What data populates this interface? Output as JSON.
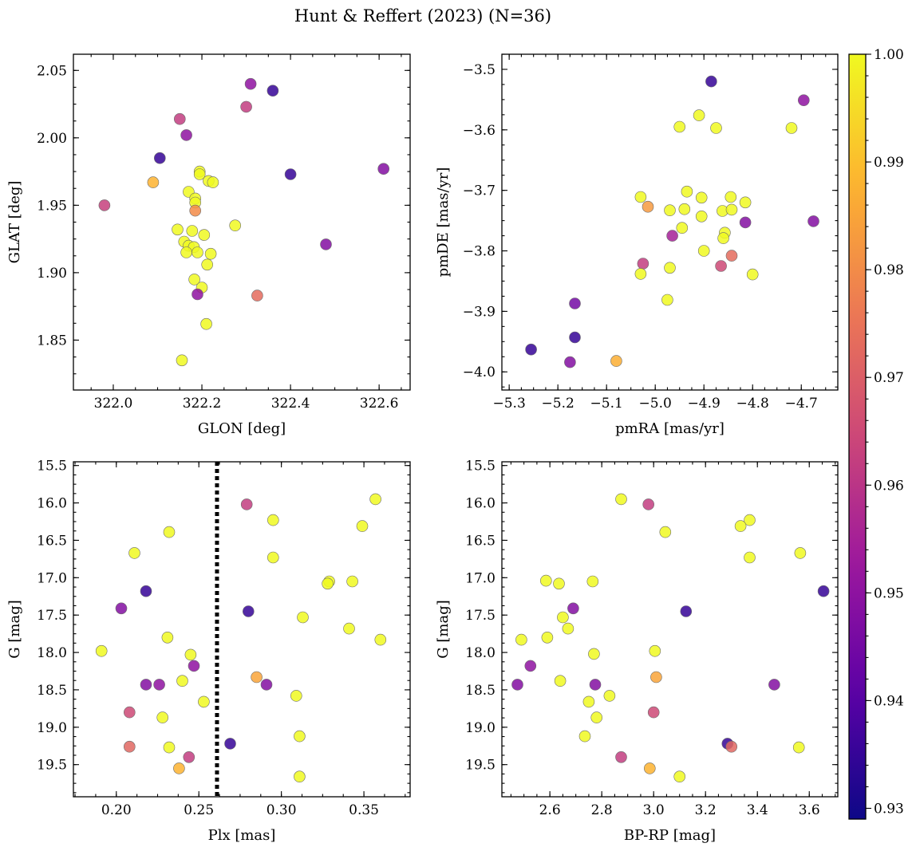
{
  "chart_data": {
    "type": "scatter",
    "title": "Hunt & Reffert (2023) (N=36)",
    "colorbar": {
      "min": 0.929,
      "max": 1.0,
      "ticks": [
        0.93,
        0.94,
        0.95,
        0.96,
        0.97,
        0.98,
        0.99,
        1.0
      ],
      "tick_labels": [
        "0.93",
        "0.94",
        "0.95",
        "0.96",
        "0.97",
        "0.98",
        "0.99",
        "1.00"
      ],
      "colormap": [
        "#0d0887",
        "#5c01a6",
        "#9c179e",
        "#cc4778",
        "#ed7953",
        "#fdb42f",
        "#f0f921"
      ]
    },
    "panels": [
      {
        "id": "glon-glat",
        "xlabel": "GLON [deg]",
        "ylabel": "GLAT [deg]",
        "xlim": [
          321.91,
          322.67
        ],
        "ylim": [
          1.813,
          2.062
        ],
        "yinvert": false,
        "xticks": [
          322.0,
          322.2,
          322.4,
          322.6
        ],
        "xtick_labels": [
          "322.0",
          "322.2",
          "322.4",
          "322.6"
        ],
        "yticks": [
          1.85,
          1.9,
          1.95,
          2.0,
          2.05
        ],
        "ytick_labels": [
          "1.85",
          "1.90",
          "1.95",
          "2.00",
          "2.05"
        ],
        "points": [
          {
            "x": 322.31,
            "y": 2.04,
            "p": 0.95
          },
          {
            "x": 322.36,
            "y": 2.035,
            "p": 0.935
          },
          {
            "x": 322.3,
            "y": 2.023,
            "p": 0.962
          },
          {
            "x": 322.15,
            "y": 2.014,
            "p": 0.962
          },
          {
            "x": 322.165,
            "y": 2.002,
            "p": 0.95
          },
          {
            "x": 322.105,
            "y": 1.985,
            "p": 0.935
          },
          {
            "x": 322.4,
            "y": 1.973,
            "p": 0.935
          },
          {
            "x": 322.61,
            "y": 1.977,
            "p": 0.948
          },
          {
            "x": 322.09,
            "y": 1.967,
            "p": 0.988
          },
          {
            "x": 322.195,
            "y": 1.975,
            "p": 1.0
          },
          {
            "x": 322.195,
            "y": 1.973,
            "p": 1.0
          },
          {
            "x": 322.215,
            "y": 1.968,
            "p": 1.0
          },
          {
            "x": 322.225,
            "y": 1.967,
            "p": 1.0
          },
          {
            "x": 322.17,
            "y": 1.96,
            "p": 1.0
          },
          {
            "x": 322.185,
            "y": 1.955,
            "p": 1.0
          },
          {
            "x": 322.185,
            "y": 1.952,
            "p": 1.0
          },
          {
            "x": 321.98,
            "y": 1.95,
            "p": 0.963
          },
          {
            "x": 322.185,
            "y": 1.946,
            "p": 0.98
          },
          {
            "x": 322.275,
            "y": 1.935,
            "p": 1.0
          },
          {
            "x": 322.145,
            "y": 1.932,
            "p": 1.0
          },
          {
            "x": 322.178,
            "y": 1.931,
            "p": 1.0
          },
          {
            "x": 322.205,
            "y": 1.928,
            "p": 1.0
          },
          {
            "x": 322.16,
            "y": 1.923,
            "p": 1.0
          },
          {
            "x": 322.17,
            "y": 1.92,
            "p": 1.0
          },
          {
            "x": 322.182,
            "y": 1.919,
            "p": 1.0
          },
          {
            "x": 322.165,
            "y": 1.915,
            "p": 1.0
          },
          {
            "x": 322.19,
            "y": 1.915,
            "p": 1.0
          },
          {
            "x": 322.22,
            "y": 1.914,
            "p": 1.0
          },
          {
            "x": 322.48,
            "y": 1.921,
            "p": 0.948
          },
          {
            "x": 322.212,
            "y": 1.906,
            "p": 1.0
          },
          {
            "x": 322.183,
            "y": 1.895,
            "p": 1.0
          },
          {
            "x": 322.2,
            "y": 1.889,
            "p": 1.0
          },
          {
            "x": 322.19,
            "y": 1.884,
            "p": 0.95
          },
          {
            "x": 322.325,
            "y": 1.883,
            "p": 0.973
          },
          {
            "x": 322.21,
            "y": 1.862,
            "p": 1.0
          },
          {
            "x": 322.155,
            "y": 1.835,
            "p": 1.0
          }
        ]
      },
      {
        "id": "pmra-pmde",
        "xlabel": "pmRA [mas/yr]",
        "ylabel": "pmDE [mas/yr]",
        "xlim": [
          -5.315,
          -4.625
        ],
        "ylim": [
          -4.03,
          -3.475
        ],
        "yinvert": false,
        "xticks": [
          -5.3,
          -5.2,
          -5.1,
          -5.0,
          -4.9,
          -4.8,
          -4.7
        ],
        "xtick_labels": [
          "−5.3",
          "−5.2",
          "−5.1",
          "−5.0",
          "−4.9",
          "−4.8",
          "−4.7"
        ],
        "yticks": [
          -4.0,
          -3.9,
          -3.8,
          -3.7,
          -3.6,
          -3.5
        ],
        "ytick_labels": [
          "−4.0",
          "−3.9",
          "−3.8",
          "−3.7",
          "−3.6",
          "−3.5"
        ],
        "points": [
          {
            "x": -4.885,
            "y": -3.52,
            "p": 0.935
          },
          {
            "x": -4.695,
            "y": -3.551,
            "p": 0.95
          },
          {
            "x": -4.91,
            "y": -3.576,
            "p": 1.0
          },
          {
            "x": -4.95,
            "y": -3.595,
            "p": 1.0
          },
          {
            "x": -4.875,
            "y": -3.597,
            "p": 1.0
          },
          {
            "x": -4.72,
            "y": -3.597,
            "p": 1.0
          },
          {
            "x": -4.935,
            "y": -3.702,
            "p": 1.0
          },
          {
            "x": -5.03,
            "y": -3.711,
            "p": 1.0
          },
          {
            "x": -4.905,
            "y": -3.712,
            "p": 1.0
          },
          {
            "x": -4.845,
            "y": -3.711,
            "p": 1.0
          },
          {
            "x": -4.815,
            "y": -3.72,
            "p": 1.0
          },
          {
            "x": -5.015,
            "y": -3.727,
            "p": 0.983
          },
          {
            "x": -4.97,
            "y": -3.733,
            "p": 1.0
          },
          {
            "x": -4.94,
            "y": -3.731,
            "p": 1.0
          },
          {
            "x": -4.862,
            "y": -3.734,
            "p": 1.0
          },
          {
            "x": -4.843,
            "y": -3.732,
            "p": 1.0
          },
          {
            "x": -4.905,
            "y": -3.743,
            "p": 1.0
          },
          {
            "x": -4.815,
            "y": -3.753,
            "p": 0.948
          },
          {
            "x": -4.675,
            "y": -3.751,
            "p": 0.948
          },
          {
            "x": -4.945,
            "y": -3.762,
            "p": 1.0
          },
          {
            "x": -4.857,
            "y": -3.77,
            "p": 1.0
          },
          {
            "x": -4.965,
            "y": -3.775,
            "p": 0.955
          },
          {
            "x": -4.86,
            "y": -3.779,
            "p": 1.0
          },
          {
            "x": -4.9,
            "y": -3.8,
            "p": 1.0
          },
          {
            "x": -4.843,
            "y": -3.808,
            "p": 0.973
          },
          {
            "x": -5.025,
            "y": -3.821,
            "p": 0.962
          },
          {
            "x": -4.865,
            "y": -3.825,
            "p": 0.965
          },
          {
            "x": -4.97,
            "y": -3.828,
            "p": 1.0
          },
          {
            "x": -5.03,
            "y": -3.838,
            "p": 1.0
          },
          {
            "x": -4.8,
            "y": -3.839,
            "p": 1.0
          },
          {
            "x": -4.975,
            "y": -3.881,
            "p": 1.0
          },
          {
            "x": -5.165,
            "y": -3.887,
            "p": 0.945
          },
          {
            "x": -5.165,
            "y": -3.943,
            "p": 0.935
          },
          {
            "x": -5.255,
            "y": -3.963,
            "p": 0.935
          },
          {
            "x": -5.175,
            "y": -3.984,
            "p": 0.948
          },
          {
            "x": -5.08,
            "y": -3.982,
            "p": 0.987
          }
        ]
      },
      {
        "id": "plx-g",
        "xlabel": "Plx [mas]",
        "ylabel": "G [mag]",
        "xlim": [
          0.174,
          0.378
        ],
        "ylim": [
          15.45,
          19.93
        ],
        "yinvert": true,
        "vline": 0.261,
        "xticks": [
          0.2,
          0.25,
          0.3,
          0.35
        ],
        "xtick_labels": [
          "0.20",
          "0.25",
          "0.30",
          "0.35"
        ],
        "yticks": [
          15.5,
          16.0,
          16.5,
          17.0,
          17.5,
          18.0,
          18.5,
          19.0,
          19.5
        ],
        "ytick_labels": [
          "15.5",
          "16.0",
          "16.5",
          "17.0",
          "17.5",
          "18.0",
          "18.5",
          "19.0",
          "19.5"
        ],
        "points": [
          {
            "x": 0.357,
            "y": 15.95,
            "p": 1.0
          },
          {
            "x": 0.279,
            "y": 16.02,
            "p": 0.962
          },
          {
            "x": 0.295,
            "y": 16.23,
            "p": 1.0
          },
          {
            "x": 0.349,
            "y": 16.31,
            "p": 1.0
          },
          {
            "x": 0.232,
            "y": 16.39,
            "p": 1.0
          },
          {
            "x": 0.211,
            "y": 16.67,
            "p": 1.0
          },
          {
            "x": 0.295,
            "y": 16.73,
            "p": 1.0
          },
          {
            "x": 0.329,
            "y": 17.05,
            "p": 1.0
          },
          {
            "x": 0.343,
            "y": 17.05,
            "p": 1.0
          },
          {
            "x": 0.328,
            "y": 17.08,
            "p": 1.0
          },
          {
            "x": 0.218,
            "y": 17.18,
            "p": 0.935
          },
          {
            "x": 0.203,
            "y": 17.41,
            "p": 0.948
          },
          {
            "x": 0.28,
            "y": 17.45,
            "p": 0.935
          },
          {
            "x": 0.313,
            "y": 17.53,
            "p": 1.0
          },
          {
            "x": 0.341,
            "y": 17.68,
            "p": 1.0
          },
          {
            "x": 0.231,
            "y": 17.8,
            "p": 1.0
          },
          {
            "x": 0.36,
            "y": 17.83,
            "p": 1.0
          },
          {
            "x": 0.191,
            "y": 17.98,
            "p": 1.0
          },
          {
            "x": 0.245,
            "y": 18.03,
            "p": 1.0
          },
          {
            "x": 0.247,
            "y": 18.18,
            "p": 0.95
          },
          {
            "x": 0.285,
            "y": 18.33,
            "p": 0.985
          },
          {
            "x": 0.24,
            "y": 18.38,
            "p": 1.0
          },
          {
            "x": 0.218,
            "y": 18.43,
            "p": 0.948
          },
          {
            "x": 0.226,
            "y": 18.43,
            "p": 0.95
          },
          {
            "x": 0.291,
            "y": 18.43,
            "p": 0.948
          },
          {
            "x": 0.309,
            "y": 18.58,
            "p": 1.0
          },
          {
            "x": 0.253,
            "y": 18.66,
            "p": 1.0
          },
          {
            "x": 0.208,
            "y": 18.8,
            "p": 0.965
          },
          {
            "x": 0.228,
            "y": 18.87,
            "p": 1.0
          },
          {
            "x": 0.311,
            "y": 19.12,
            "p": 1.0
          },
          {
            "x": 0.269,
            "y": 19.22,
            "p": 0.935
          },
          {
            "x": 0.208,
            "y": 19.26,
            "p": 0.972
          },
          {
            "x": 0.232,
            "y": 19.27,
            "p": 1.0
          },
          {
            "x": 0.244,
            "y": 19.4,
            "p": 0.962
          },
          {
            "x": 0.238,
            "y": 19.55,
            "p": 0.988
          },
          {
            "x": 0.311,
            "y": 19.66,
            "p": 1.0
          }
        ]
      },
      {
        "id": "bprp-g",
        "xlabel": "BP-RP [mag]",
        "ylabel": "G [mag]",
        "xlim": [
          2.415,
          3.71
        ],
        "ylim": [
          15.45,
          19.93
        ],
        "yinvert": true,
        "xticks": [
          2.6,
          2.8,
          3.0,
          3.2,
          3.4,
          3.6
        ],
        "xtick_labels": [
          "2.6",
          "2.8",
          "3.0",
          "3.2",
          "3.4",
          "3.6"
        ],
        "yticks": [
          15.5,
          16.0,
          16.5,
          17.0,
          17.5,
          18.0,
          18.5,
          19.0,
          19.5
        ],
        "ytick_labels": [
          "15.5",
          "16.0",
          "16.5",
          "17.0",
          "17.5",
          "18.0",
          "18.5",
          "19.0",
          "19.5"
        ],
        "points": [
          {
            "x": 2.875,
            "y": 15.95,
            "p": 1.0
          },
          {
            "x": 2.98,
            "y": 16.02,
            "p": 0.962
          },
          {
            "x": 3.37,
            "y": 16.23,
            "p": 1.0
          },
          {
            "x": 3.335,
            "y": 16.31,
            "p": 1.0
          },
          {
            "x": 3.045,
            "y": 16.39,
            "p": 1.0
          },
          {
            "x": 3.565,
            "y": 16.67,
            "p": 1.0
          },
          {
            "x": 3.37,
            "y": 16.73,
            "p": 1.0
          },
          {
            "x": 2.585,
            "y": 17.04,
            "p": 1.0
          },
          {
            "x": 2.765,
            "y": 17.05,
            "p": 1.0
          },
          {
            "x": 2.635,
            "y": 17.08,
            "p": 1.0
          },
          {
            "x": 3.655,
            "y": 17.18,
            "p": 0.935
          },
          {
            "x": 2.69,
            "y": 17.41,
            "p": 0.948
          },
          {
            "x": 3.125,
            "y": 17.45,
            "p": 0.935
          },
          {
            "x": 2.65,
            "y": 17.53,
            "p": 1.0
          },
          {
            "x": 2.67,
            "y": 17.68,
            "p": 1.0
          },
          {
            "x": 2.59,
            "y": 17.8,
            "p": 1.0
          },
          {
            "x": 2.49,
            "y": 17.83,
            "p": 1.0
          },
          {
            "x": 3.005,
            "y": 17.98,
            "p": 1.0
          },
          {
            "x": 2.77,
            "y": 18.02,
            "p": 1.0
          },
          {
            "x": 2.525,
            "y": 18.18,
            "p": 0.95
          },
          {
            "x": 3.01,
            "y": 18.33,
            "p": 0.985
          },
          {
            "x": 2.64,
            "y": 18.38,
            "p": 1.0
          },
          {
            "x": 2.475,
            "y": 18.43,
            "p": 0.948
          },
          {
            "x": 2.775,
            "y": 18.43,
            "p": 0.948
          },
          {
            "x": 3.465,
            "y": 18.43,
            "p": 0.948
          },
          {
            "x": 2.83,
            "y": 18.58,
            "p": 1.0
          },
          {
            "x": 2.75,
            "y": 18.66,
            "p": 1.0
          },
          {
            "x": 3.0,
            "y": 18.8,
            "p": 0.965
          },
          {
            "x": 2.78,
            "y": 18.87,
            "p": 1.0
          },
          {
            "x": 2.735,
            "y": 19.12,
            "p": 1.0
          },
          {
            "x": 3.285,
            "y": 19.22,
            "p": 0.935
          },
          {
            "x": 3.3,
            "y": 19.26,
            "p": 0.972
          },
          {
            "x": 3.56,
            "y": 19.27,
            "p": 1.0
          },
          {
            "x": 2.875,
            "y": 19.4,
            "p": 0.962
          },
          {
            "x": 2.985,
            "y": 19.55,
            "p": 0.988
          },
          {
            "x": 3.1,
            "y": 19.66,
            "p": 1.0
          }
        ]
      }
    ]
  }
}
